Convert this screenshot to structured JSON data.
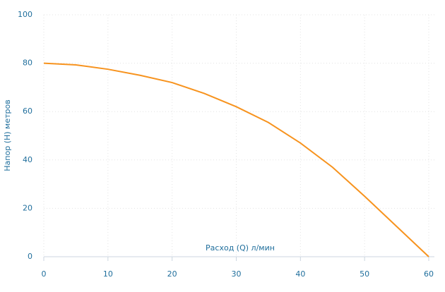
{
  "chart_data": {
    "type": "line",
    "x_label": "Расход (Q) л/мин",
    "y_label": "Напор (H) метров",
    "x": [
      0,
      5,
      10,
      15,
      20,
      25,
      30,
      35,
      40,
      45,
      50,
      55,
      60
    ],
    "series": [
      {
        "color": "#f7931e",
        "values": [
          80,
          79.3,
          77.5,
          75,
          72,
          67.5,
          62,
          55.5,
          47,
          37,
          25,
          12.5,
          0
        ]
      }
    ],
    "xlim": [
      0,
      60
    ],
    "xticks": [
      0,
      10,
      20,
      30,
      40,
      50,
      60
    ],
    "ylim": [
      0,
      100
    ],
    "yticks": [
      0,
      20,
      40,
      60,
      80,
      100
    ],
    "grid": true
  }
}
